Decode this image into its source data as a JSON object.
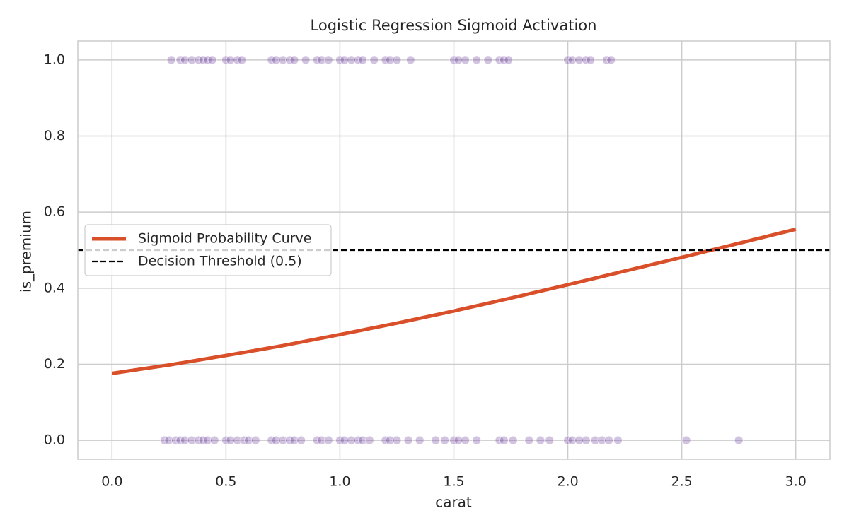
{
  "chart_data": {
    "type": "scatter",
    "title": "Logistic Regression Sigmoid Activation",
    "x_label": "carat",
    "y_label": "is_premium",
    "xlim": [
      -0.15,
      3.15
    ],
    "ylim": [
      -0.05,
      1.05
    ],
    "xticks": [
      {
        "value": 0,
        "label": "0.0"
      },
      {
        "value": 0.5,
        "label": "0.5"
      },
      {
        "value": 1,
        "label": "1.0"
      },
      {
        "value": 1.5,
        "label": "1.5"
      },
      {
        "value": 2,
        "label": "2.0"
      },
      {
        "value": 2.5,
        "label": "2.5"
      },
      {
        "value": 3,
        "label": "3.0"
      }
    ],
    "yticks": [
      {
        "value": 0,
        "label": "0.0"
      },
      {
        "value": 0.2,
        "label": "0.2"
      },
      {
        "value": 0.4,
        "label": "0.4"
      },
      {
        "value": 0.6,
        "label": "0.6"
      },
      {
        "value": 0.8,
        "label": "0.8"
      },
      {
        "value": 1,
        "label": "1.0"
      }
    ],
    "grid": true,
    "legend": "center left",
    "series": [
      {
        "type": "scatter",
        "color": "#6a3d9a",
        "x": [
          0.26,
          0.3,
          0.32,
          0.35,
          0.38,
          0.4,
          0.42,
          0.44,
          0.5,
          0.52,
          0.55,
          0.57,
          0.7,
          0.72,
          0.75,
          0.78,
          0.8,
          0.85,
          0.9,
          0.92,
          0.95,
          1.0,
          1.02,
          1.05,
          1.08,
          1.1,
          1.15,
          1.2,
          1.22,
          1.25,
          1.31,
          1.5,
          1.52,
          1.55,
          1.6,
          1.65,
          1.7,
          1.72,
          1.74,
          2.0,
          2.02,
          2.05,
          2.08,
          2.1,
          2.17,
          2.19,
          0.23,
          0.25,
          0.28,
          0.3,
          0.32,
          0.35,
          0.38,
          0.4,
          0.42,
          0.45,
          0.5,
          0.52,
          0.55,
          0.58,
          0.6,
          0.63,
          0.7,
          0.72,
          0.75,
          0.78,
          0.8,
          0.83,
          0.9,
          0.92,
          0.95,
          1.0,
          1.02,
          1.05,
          1.08,
          1.1,
          1.13,
          1.2,
          1.22,
          1.25,
          1.3,
          1.35,
          1.42,
          1.46,
          1.5,
          1.52,
          1.55,
          1.6,
          1.7,
          1.72,
          1.76,
          1.83,
          1.88,
          1.92,
          2.0,
          2.02,
          2.05,
          2.08,
          2.12,
          2.15,
          2.18,
          2.22,
          2.52,
          2.75
        ],
        "values": [
          1,
          1,
          1,
          1,
          1,
          1,
          1,
          1,
          1,
          1,
          1,
          1,
          1,
          1,
          1,
          1,
          1,
          1,
          1,
          1,
          1,
          1,
          1,
          1,
          1,
          1,
          1,
          1,
          1,
          1,
          1,
          1,
          1,
          1,
          1,
          1,
          1,
          1,
          1,
          1,
          1,
          1,
          1,
          1,
          1,
          1,
          0,
          0,
          0,
          0,
          0,
          0,
          0,
          0,
          0,
          0,
          0,
          0,
          0,
          0,
          0,
          0,
          0,
          0,
          0,
          0,
          0,
          0,
          0,
          0,
          0,
          0,
          0,
          0,
          0,
          0,
          0,
          0,
          0,
          0,
          0,
          0,
          0,
          0,
          0,
          0,
          0,
          0,
          0,
          0,
          0,
          0,
          0,
          0,
          0,
          0,
          0,
          0,
          0,
          0,
          0,
          0,
          0,
          0
        ]
      },
      {
        "type": "line",
        "name": "Sigmoid Probability Curve",
        "color": "#d94f2a",
        "x": [
          0,
          0.25,
          0.5,
          0.75,
          1,
          1.25,
          1.5,
          1.75,
          2,
          2.25,
          2.5,
          2.75,
          3
        ],
        "values": [
          0.176,
          0.198,
          0.223,
          0.249,
          0.278,
          0.308,
          0.34,
          0.374,
          0.409,
          0.445,
          0.481,
          0.518,
          0.555
        ]
      },
      {
        "type": "hline",
        "name": "Decision Threshold (0.5)",
        "color": "#000000",
        "y": 0.5
      }
    ]
  }
}
